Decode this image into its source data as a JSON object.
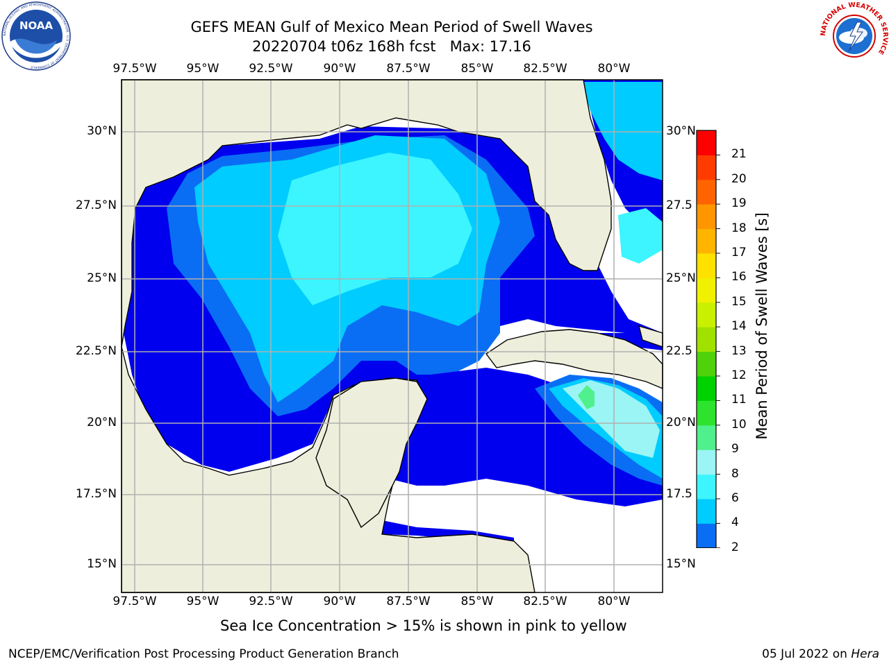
{
  "header": {
    "title_line1": "GEFS MEAN Gulf of Mexico Mean Period of Swell Waves",
    "title_line2": "20220704 t06z 168h fcst   Max: 17.16"
  },
  "logos": {
    "noaa_text": "NOAA",
    "noaa_ring": "NATIONAL OCEANIC AND ATMOSPHERIC ADMINISTRATION · U.S. DEPARTMENT OF COMMERCE",
    "nws_ring": "NATIONAL WEATHER SERVICE"
  },
  "map": {
    "lon_labels": [
      "97.5°W",
      "95°W",
      "92.5°W",
      "90°W",
      "87.5°W",
      "85°W",
      "82.5°W",
      "80°W"
    ],
    "lat_labels_left": [
      "30°N",
      "27.5°N",
      "25°N",
      "22.5°N",
      "20°N",
      "17.5°N",
      "15°N"
    ],
    "lat_labels_right": [
      "30°N",
      "27.5",
      "25°N",
      "22.5",
      "20°N",
      "17.5",
      "15°N"
    ],
    "colors": {
      "land": "#eeeedc",
      "ocean_blank": "#ffffff",
      "grid": "#b0b0b0"
    }
  },
  "colorbar": {
    "label": "Mean Period of Swell Waves [s]",
    "ticks": [
      "2",
      "4",
      "6",
      "8",
      "9",
      "10",
      "11",
      "12",
      "13",
      "14",
      "15",
      "16",
      "17",
      "18",
      "19",
      "20",
      "21"
    ],
    "colors": [
      "#0a6ef5",
      "#00ccff",
      "#3cf5ff",
      "#9bf5f5",
      "#50f08c",
      "#2ee32e",
      "#00d200",
      "#50d20a",
      "#a0e100",
      "#c8f000",
      "#f0f000",
      "#ffe100",
      "#ffb400",
      "#ff9600",
      "#ff6400",
      "#ff3c00",
      "#ff0000"
    ],
    "extend_color": "#0000ee"
  },
  "footer": {
    "note": "Sea Ice Concentration > 15% is shown in pink to yellow",
    "left": "NCEP/EMC/Verification Post Processing Product Generation Branch",
    "right_prefix": "05 Jul 2022 on ",
    "right_host": "Hera"
  }
}
